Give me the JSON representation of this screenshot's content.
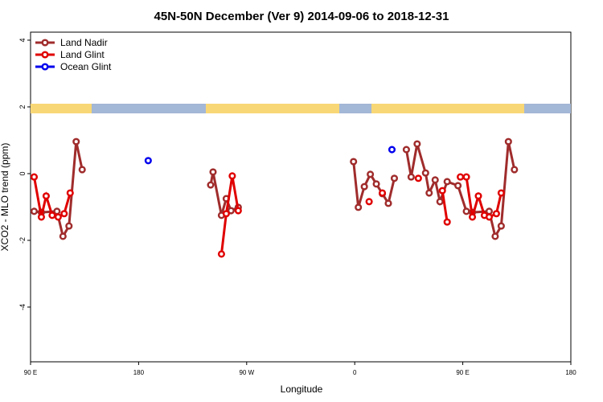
{
  "chart_data": {
    "type": "line",
    "title": "45N-50N December (Ver 9)   2014-09-06 to 2018-12-31",
    "x_label": "Longitude",
    "y_label": "XCO2 - MLO trend (ppm)",
    "xlim": [
      90,
      540
    ],
    "ylim": [
      -5.64,
      4.24
    ],
    "xticks": [
      {
        "value": 90,
        "label": "90 E"
      },
      180,
      {
        "value": 270,
        "label": "90 W"
      },
      {
        "value": 360,
        "label": "0"
      },
      {
        "value": 450,
        "label": "90 E"
      },
      {
        "value": 540,
        "label": "180"
      }
    ],
    "yticks": [
      -4,
      -2,
      0,
      2,
      4
    ],
    "legend": "top-left",
    "series": [
      {
        "name": "Land Nadir",
        "color": "#a02c2c",
        "x": [
          93,
          99,
          112,
          117,
          122,
          128,
          133,
          null,
          240,
          242,
          249,
          253,
          257,
          263,
          null,
          359,
          363,
          368,
          373,
          378,
          383,
          388,
          393,
          null,
          403,
          407,
          412,
          419,
          422,
          427,
          431,
          437,
          446,
          453,
          458,
          472,
          477,
          482,
          488,
          493
        ],
        "values": [
          -1.13,
          -1.16,
          -1.13,
          -1.88,
          -1.57,
          0.96,
          0.12,
          null,
          -0.34,
          0.05,
          -1.25,
          -0.75,
          -1.11,
          -1.01,
          null,
          0.36,
          -1.01,
          -0.39,
          -0.02,
          -0.31,
          -0.6,
          -0.89,
          -0.14,
          null,
          0.72,
          -0.1,
          0.89,
          0.02,
          -0.58,
          -0.19,
          -0.84,
          -0.24,
          -0.36,
          -1.13,
          -1.16,
          -1.13,
          -1.88,
          -1.57,
          0.96,
          0.12
        ]
      },
      {
        "name": "Land Glint",
        "color": "#e00000",
        "x": [
          93,
          99,
          103,
          108,
          113,
          118,
          123,
          null,
          249,
          253,
          258,
          263,
          null,
          372,
          null,
          383,
          null,
          413,
          null,
          433,
          437,
          null,
          448,
          453,
          458,
          463,
          468,
          472,
          478,
          482
        ],
        "values": [
          -0.1,
          -1.3,
          -0.67,
          -1.25,
          -1.3,
          -1.2,
          -0.58,
          null,
          -2.41,
          -1.2,
          -0.07,
          -1.11,
          null,
          -0.84,
          null,
          -0.58,
          null,
          -0.14,
          null,
          -0.51,
          -1.45,
          null,
          -0.1,
          -0.1,
          -1.3,
          -0.67,
          -1.25,
          -1.3,
          -1.2,
          -0.58
        ]
      },
      {
        "name": "Ocean Glint",
        "color": "#0000ee",
        "x": [
          188,
          null,
          391
        ],
        "values": [
          0.39,
          null,
          0.72
        ]
      }
    ]
  }
}
